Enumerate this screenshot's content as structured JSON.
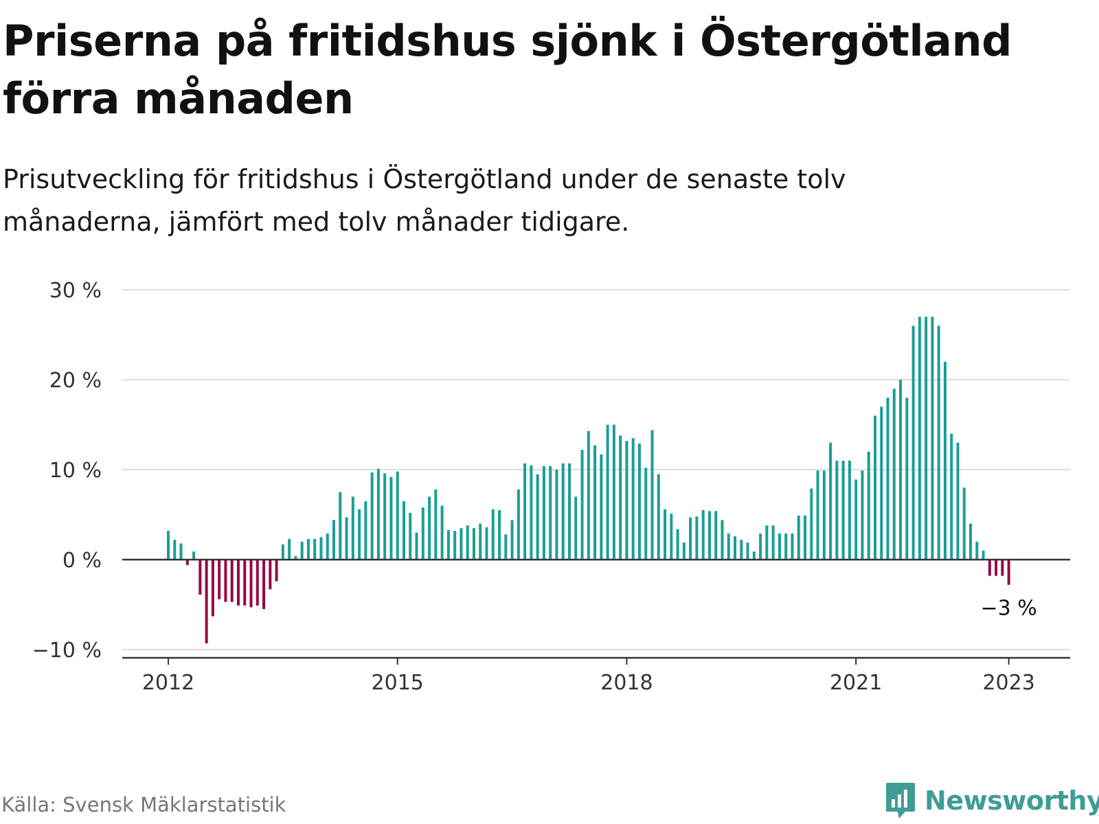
{
  "header": {
    "title": "Priserna på fritidshus sjönk i Östergötland förra månaden",
    "subtitle": "Prisutveckling för fritidshus i Östergötland under de senaste tolv månaderna, jämfört med tolv månader tidigare."
  },
  "footer": {
    "source": "Källa: Svensk Mäklarstatistik",
    "brand": "Newsworthy",
    "brand_icon": "chart-bubble-icon"
  },
  "colors": {
    "positive": "#1a9e96",
    "negative": "#960842",
    "grid": "#dddddd",
    "axis": "#333333",
    "brand": "#3f9d95"
  },
  "chart_data": {
    "type": "bar",
    "title": "",
    "xlabel": "",
    "ylabel": "",
    "ylim": [
      -10,
      30
    ],
    "y_ticks": [
      {
        "value": -10,
        "label": "−10 %"
      },
      {
        "value": 0,
        "label": "0 %"
      },
      {
        "value": 10,
        "label": "10 %"
      },
      {
        "value": 20,
        "label": "20 %"
      },
      {
        "value": 30,
        "label": "30 %"
      }
    ],
    "x_ticks": [
      {
        "month": "2012-01",
        "label": "2012"
      },
      {
        "month": "2015-01",
        "label": "2015"
      },
      {
        "month": "2018-01",
        "label": "2018"
      },
      {
        "month": "2021-01",
        "label": "2021"
      },
      {
        "month": "2023-01",
        "label": "2023"
      }
    ],
    "grid": true,
    "legend": false,
    "start_month": "2012-01",
    "end_month": "2023-01",
    "values": [
      3.2,
      2.2,
      1.8,
      -0.6,
      0.9,
      -3.9,
      -9.3,
      -6.3,
      -4.4,
      -4.7,
      -4.7,
      -5.1,
      -5.1,
      -5.3,
      -5.1,
      -5.5,
      -3.3,
      -2.4,
      1.7,
      2.3,
      0.4,
      2.0,
      2.3,
      2.3,
      2.5,
      2.9,
      4.4,
      7.5,
      4.7,
      7.0,
      5.6,
      6.5,
      9.7,
      10.1,
      9.6,
      9.2,
      9.8,
      6.5,
      5.2,
      3.0,
      5.8,
      7.0,
      7.8,
      6.0,
      3.3,
      3.2,
      3.5,
      3.8,
      3.5,
      4.0,
      3.6,
      5.6,
      5.5,
      2.8,
      4.4,
      7.8,
      10.7,
      10.5,
      9.5,
      10.4,
      10.4,
      10.0,
      10.7,
      10.7,
      7.0,
      12.2,
      14.3,
      12.7,
      11.7,
      15.0,
      15.0,
      13.8,
      13.2,
      13.5,
      12.9,
      10.2,
      14.4,
      9.5,
      5.6,
      5.1,
      3.4,
      1.9,
      4.7,
      4.8,
      5.5,
      5.4,
      5.4,
      4.4,
      2.9,
      2.6,
      2.2,
      1.9,
      0.9,
      2.9,
      3.8,
      3.8,
      2.9,
      2.9,
      2.9,
      4.9,
      4.9,
      7.9,
      9.9,
      9.9,
      13.0,
      11.0,
      11.0,
      11.0,
      8.9,
      9.9,
      12.0,
      16.0,
      17.0,
      18.0,
      19.0,
      20.0,
      18.0,
      26.0,
      27.0,
      27.0,
      27.0,
      26.0,
      22.0,
      14.0,
      13.0,
      8.0,
      4.0,
      2.0,
      1.0,
      -1.8,
      -1.8,
      -1.8,
      -2.8
    ],
    "annotations": [
      {
        "month": "2023-01",
        "value": -2.8,
        "label": "−3 %"
      }
    ]
  }
}
